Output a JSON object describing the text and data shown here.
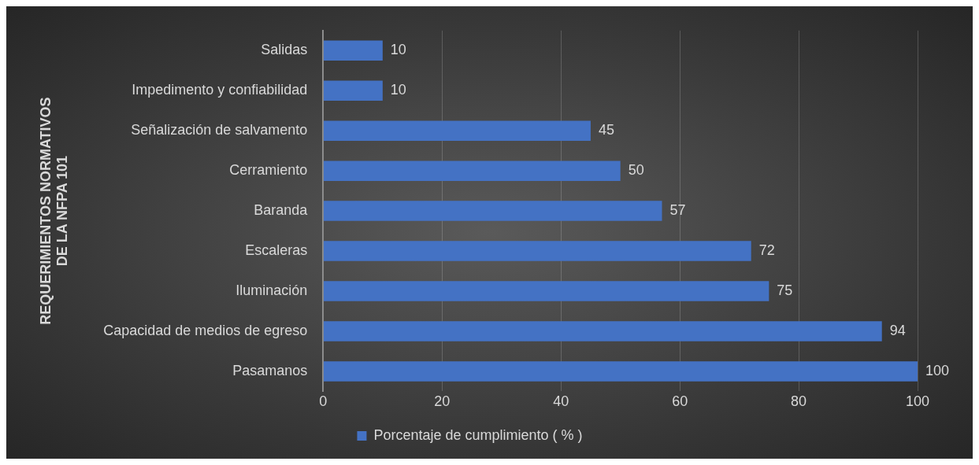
{
  "chart_data": {
    "type": "bar",
    "orientation": "horizontal",
    "ylabel": "REQUERIMIENTOS NORMATIVOS DE LA NFPA 101",
    "categories": [
      "Salidas",
      "Impedimento y confiabilidad",
      "Señalización de salvamento",
      "Cerramiento",
      "Baranda",
      "Escaleras",
      "Iluminación",
      "Capacidad de medios de egreso",
      "Pasamanos"
    ],
    "series": [
      {
        "name": "Porcentaje de cumplimiento ( % )",
        "color": "#4472c4",
        "values": [
          10,
          10,
          45,
          50,
          57,
          72,
          75,
          94,
          100
        ]
      }
    ],
    "xlim": [
      0,
      100
    ],
    "xticks": [
      0,
      20,
      40,
      60,
      80,
      100
    ],
    "grid": "x",
    "legend": "bottom",
    "data_labels": true
  }
}
